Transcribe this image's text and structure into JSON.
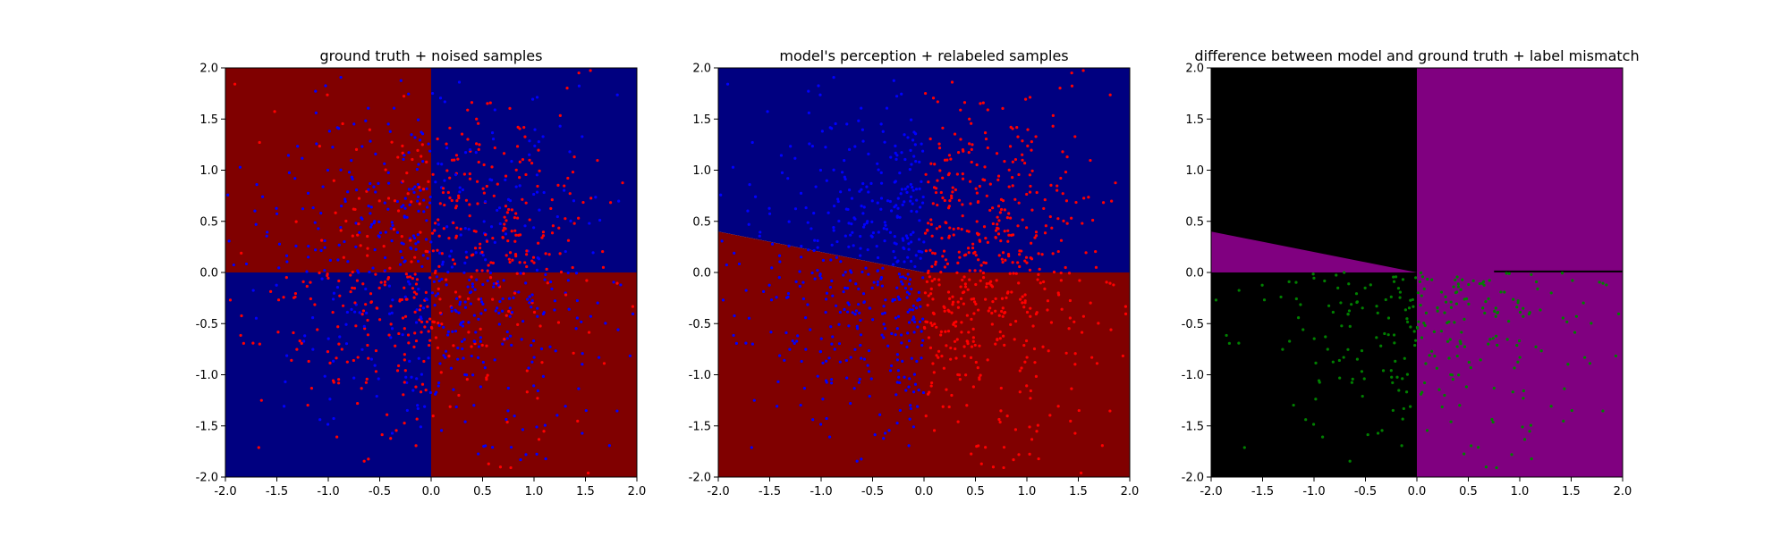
{
  "colors": {
    "red_region": "#800000",
    "blue_region": "#000080",
    "red_point": "#ff0000",
    "blue_point": "#0000ff",
    "black_region": "#000000",
    "purple_region": "#800080",
    "green_point": "#008000"
  },
  "chart_data": [
    {
      "type": "heatmap",
      "title": "ground truth + noised samples",
      "xlim": [
        -2.0,
        2.0
      ],
      "ylim": [
        -2.0,
        2.0
      ],
      "xticks": [
        "-2.0",
        "-1.5",
        "-1.0",
        "-0.5",
        "0.0",
        "0.5",
        "1.0",
        "1.5",
        "2.0"
      ],
      "yticks": [
        "-2.0",
        "-1.5",
        "-1.0",
        "-0.5",
        "0.0",
        "0.5",
        "1.0",
        "1.5",
        "2.0"
      ],
      "grid": false,
      "regions": [
        {
          "x": [
            -2.0,
            0.0
          ],
          "y": [
            0.0,
            2.0
          ],
          "color": "red_region"
        },
        {
          "x": [
            0.0,
            2.0
          ],
          "y": [
            0.0,
            2.0
          ],
          "color": "blue_region"
        },
        {
          "x": [
            -2.0,
            0.0
          ],
          "y": [
            -2.0,
            0.0
          ],
          "color": "blue_region"
        },
        {
          "x": [
            0.0,
            2.0
          ],
          "y": [
            -2.0,
            0.0
          ],
          "color": "red_region"
        }
      ],
      "samples": "noisy samples; label = sign(x*y) with label noise (about 1000 points, red and blue)"
    },
    {
      "type": "heatmap",
      "title": "model's perception + relabeled samples",
      "xlim": [
        -2.0,
        2.0
      ],
      "ylim": [
        -2.0,
        2.0
      ],
      "xticks": [
        "-2.0",
        "-1.5",
        "-1.0",
        "-0.5",
        "0.0",
        "0.5",
        "1.0",
        "1.5",
        "2.0"
      ],
      "yticks": [
        "-2.0",
        "-1.5",
        "-1.0",
        "-0.5",
        "0.0",
        "0.5",
        "1.0",
        "1.5",
        "2.0"
      ],
      "grid": false,
      "decision_boundary": [
        [
          -2.0,
          0.4
        ],
        [
          0.0,
          0.0
        ],
        [
          2.0,
          0.0
        ]
      ],
      "regions": [
        {
          "side": "above boundary",
          "color": "blue_region"
        },
        {
          "side": "below boundary",
          "color": "red_region"
        }
      ],
      "samples": "same samples relabeled by model; red for x > 0 blue for x < 0 (about 1000 points)"
    },
    {
      "type": "heatmap",
      "title": "difference between model and ground truth + label mismatch",
      "xlim": [
        -2.0,
        2.0
      ],
      "ylim": [
        -2.0,
        2.0
      ],
      "xticks": [
        "-2.0",
        "-1.5",
        "-1.0",
        "-0.5",
        "0.0",
        "0.5",
        "1.0",
        "1.5",
        "2.0"
      ],
      "yticks": [
        "-2.0",
        "-1.5",
        "-1.0",
        "-0.5",
        "0.0",
        "0.5",
        "1.0",
        "1.5",
        "2.0"
      ],
      "grid": false,
      "regions": [
        {
          "x": [
            -2.0,
            0.0
          ],
          "y": [
            0.0,
            2.0
          ],
          "color": "black_region",
          "note": "agreement (upper-left, above slanted line)"
        },
        {
          "x": [
            -2.0,
            0.0
          ],
          "y": [
            0.0,
            0.4
          ],
          "color": "purple_region",
          "note": "wedge between y=0 and slanted boundary"
        },
        {
          "x": [
            0.0,
            2.0
          ],
          "y": [
            -2.0,
            2.0
          ],
          "color": "purple_region"
        },
        {
          "x": [
            -2.0,
            0.0
          ],
          "y": [
            -2.0,
            0.0
          ],
          "color": "black_region"
        }
      ],
      "black_line": {
        "x": [
          0.75,
          2.0
        ],
        "y": 0.01
      },
      "samples": "mismatched samples in green, located in lower half (about 300 points)"
    }
  ]
}
